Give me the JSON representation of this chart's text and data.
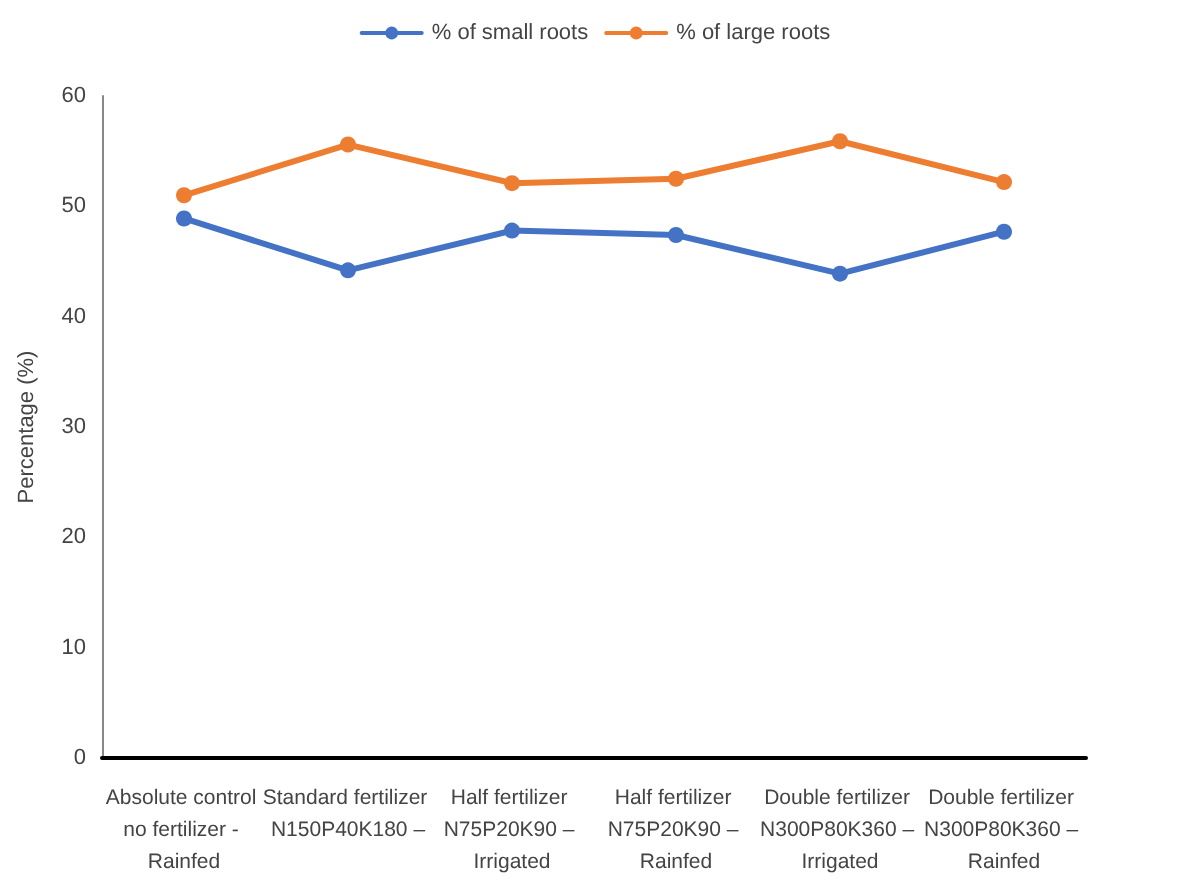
{
  "chart_data": {
    "type": "line",
    "ylabel": "Percentage (%)",
    "categories": [
      "Absolute control no fertilizer - Rainfed",
      "Standard fertilizer N150P40K180 –",
      "Half fertilizer N75P20K90 – Irrigated",
      "Half fertilizer N75P20K90 – Rainfed",
      "Double fertilizer N300P80K360 – Irrigated",
      "Double fertilizer N300P80K360 – Rainfed"
    ],
    "series": [
      {
        "name": "% of small roots",
        "color": "#4472c4",
        "values": [
          48.9,
          44.2,
          47.8,
          47.4,
          43.9,
          47.7
        ]
      },
      {
        "name": "% of large roots",
        "color": "#ed7d31",
        "values": [
          51.0,
          55.6,
          52.1,
          52.5,
          55.9,
          52.2
        ]
      }
    ],
    "ylim": [
      0,
      60
    ],
    "yticks": [
      0,
      10,
      20,
      30,
      40,
      50,
      60
    ],
    "grid": false,
    "legend": "top",
    "marker": "circle",
    "line_style": "solid"
  }
}
